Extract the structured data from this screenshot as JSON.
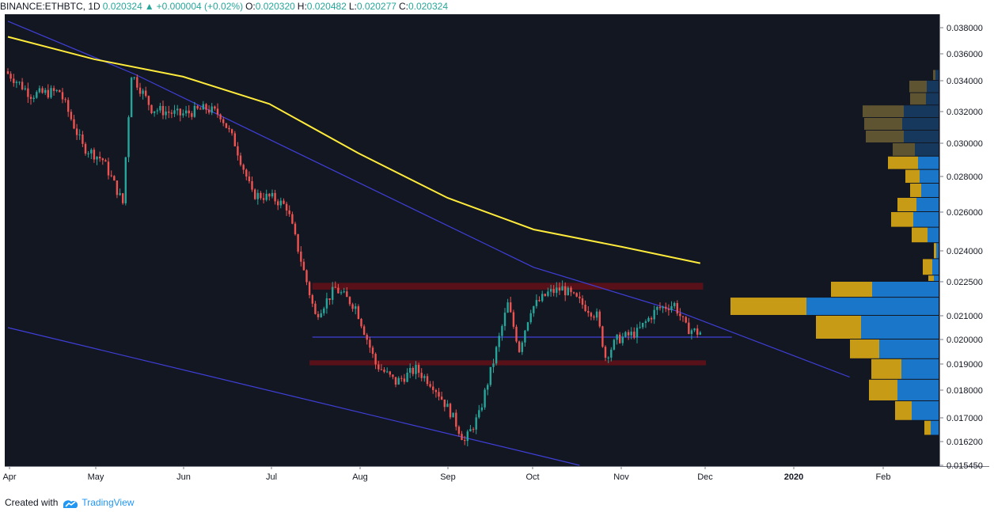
{
  "header": {
    "symbol": "BINANCE:ETHBTC, 1D",
    "last": "0.020324",
    "change": "+0.000004 (+0.02%)",
    "o_label": "O:",
    "o": "0.020320",
    "h_label": "H:",
    "h": "0.020482",
    "l_label": "L:",
    "l": "0.020277",
    "c_label": "C:",
    "c": "0.020324"
  },
  "footer": {
    "created_with": "Created with",
    "brand": "TradingView"
  },
  "colors": {
    "background": "#131722",
    "up": "#26a69a",
    "down": "#ef5350",
    "ma": "#ffeb3b",
    "trendline": "#3f3fd9",
    "resistance_zone": "#5c1119",
    "vp_buy_upper": "#5f5432",
    "vp_sell_upper": "#16385c",
    "vp_buy_lower": "#c89b16",
    "vp_sell_lower": "#1976c9"
  },
  "chart_data": {
    "type": "candlestick",
    "title": "BINANCE:ETHBTC, 1D",
    "y_axis_ticks": [
      "0.038000",
      "0.036000",
      "0.034000",
      "0.032000",
      "0.030000",
      "0.028000",
      "0.026000",
      "0.024000",
      "0.022500",
      "0.021000",
      "0.020000",
      "0.019000",
      "0.018000",
      "0.017000",
      "0.016200",
      "0.015450"
    ],
    "x_axis_ticks": [
      "Apr",
      "May",
      "Jun",
      "Jul",
      "Aug",
      "Sep",
      "Oct",
      "Nov",
      "Dec",
      "2020",
      "Feb"
    ],
    "date_range": [
      "2019-04-01",
      "2019-11-28"
    ],
    "price_anchors": [
      [
        "2019-04-01",
        0.0347
      ],
      [
        "2019-04-10",
        0.0331
      ],
      [
        "2019-04-20",
        0.0333
      ],
      [
        "2019-04-28",
        0.0298
      ],
      [
        "2019-05-05",
        0.029
      ],
      [
        "2019-05-12",
        0.0265
      ],
      [
        "2019-05-15",
        0.0345
      ],
      [
        "2019-05-22",
        0.0322
      ],
      [
        "2019-06-01",
        0.0318
      ],
      [
        "2019-06-10",
        0.0322
      ],
      [
        "2019-06-15",
        0.0318
      ],
      [
        "2019-06-20",
        0.03
      ],
      [
        "2019-06-26",
        0.027
      ],
      [
        "2019-07-03",
        0.0268
      ],
      [
        "2019-07-08",
        0.0263
      ],
      [
        "2019-07-14",
        0.023
      ],
      [
        "2019-07-18",
        0.021
      ],
      [
        "2019-07-25",
        0.0222
      ],
      [
        "2019-08-01",
        0.0214
      ],
      [
        "2019-08-08",
        0.019
      ],
      [
        "2019-08-15",
        0.0183
      ],
      [
        "2019-08-22",
        0.0188
      ],
      [
        "2019-08-28",
        0.0182
      ],
      [
        "2019-09-03",
        0.0172
      ],
      [
        "2019-09-08",
        0.0162
      ],
      [
        "2019-09-13",
        0.0171
      ],
      [
        "2019-09-18",
        0.0191
      ],
      [
        "2019-09-23",
        0.0215
      ],
      [
        "2019-09-27",
        0.0196
      ],
      [
        "2019-10-01",
        0.0213
      ],
      [
        "2019-10-07",
        0.022
      ],
      [
        "2019-10-12",
        0.0222
      ],
      [
        "2019-10-18",
        0.0216
      ],
      [
        "2019-10-24",
        0.021
      ],
      [
        "2019-10-27",
        0.0193
      ],
      [
        "2019-10-31",
        0.02
      ],
      [
        "2019-11-07",
        0.0203
      ],
      [
        "2019-11-14",
        0.0213
      ],
      [
        "2019-11-20",
        0.0215
      ],
      [
        "2019-11-24",
        0.0205
      ],
      [
        "2019-11-28",
        0.0203
      ]
    ],
    "moving_average": [
      [
        "2019-04-01",
        0.0373
      ],
      [
        "2019-05-01",
        0.0356
      ],
      [
        "2019-06-01",
        0.0343
      ],
      [
        "2019-07-01",
        0.0325
      ],
      [
        "2019-08-01",
        0.0294
      ],
      [
        "2019-09-01",
        0.0268
      ],
      [
        "2019-10-01",
        0.0251
      ],
      [
        "2019-11-01",
        0.0242
      ],
      [
        "2019-11-28",
        0.0234
      ]
    ],
    "trendlines": [
      {
        "name": "upper-descending",
        "points": [
          [
            "2019-04-01",
            0.0385
          ],
          [
            "2019-05-15",
            0.0345
          ],
          [
            "2019-10-01",
            0.0232
          ],
          [
            "2019-11-20",
            0.0212
          ],
          [
            "2020-01-19",
            0.0185
          ]
        ]
      },
      {
        "name": "lower-channel",
        "points": [
          [
            "2019-04-01",
            0.0205
          ],
          [
            "2019-10-17",
            0.01545
          ]
        ]
      },
      {
        "name": "support-line",
        "points": [
          [
            "2019-07-16",
            0.0201
          ],
          [
            "2019-12-09",
            0.0201
          ]
        ]
      }
    ],
    "zones": [
      {
        "name": "resistance-zone",
        "from": "2019-07-16",
        "to": "2019-11-29",
        "low": 0.02215,
        "high": 0.02245
      },
      {
        "name": "support-zone",
        "from": "2019-07-15",
        "to": "2019-11-30",
        "low": 0.01895,
        "high": 0.01915
      }
    ],
    "volume_profile": [
      {
        "price_low": 0.034,
        "price_high": 0.0348,
        "buy": 3,
        "sell": 4
      },
      {
        "price_low": 0.0332,
        "price_high": 0.034,
        "buy": 22,
        "sell": 15
      },
      {
        "price_low": 0.0324,
        "price_high": 0.0332,
        "buy": 20,
        "sell": 16
      },
      {
        "price_low": 0.0316,
        "price_high": 0.0324,
        "buy": 52,
        "sell": 44
      },
      {
        "price_low": 0.0308,
        "price_high": 0.0316,
        "buy": 48,
        "sell": 46
      },
      {
        "price_low": 0.03,
        "price_high": 0.0308,
        "buy": 48,
        "sell": 44
      },
      {
        "price_low": 0.0292,
        "price_high": 0.03,
        "buy": 28,
        "sell": 30
      },
      {
        "price_low": 0.0284,
        "price_high": 0.0292,
        "buy": 38,
        "sell": 26
      },
      {
        "price_low": 0.0276,
        "price_high": 0.0284,
        "buy": 18,
        "sell": 24
      },
      {
        "price_low": 0.0268,
        "price_high": 0.0276,
        "buy": 14,
        "sell": 22
      },
      {
        "price_low": 0.026,
        "price_high": 0.0268,
        "buy": 24,
        "sell": 28
      },
      {
        "price_low": 0.0252,
        "price_high": 0.026,
        "buy": 28,
        "sell": 32
      },
      {
        "price_low": 0.0244,
        "price_high": 0.0252,
        "buy": 20,
        "sell": 14
      },
      {
        "price_low": 0.0236,
        "price_high": 0.0244,
        "buy": 3,
        "sell": 3
      },
      {
        "price_low": 0.0228,
        "price_high": 0.0236,
        "buy": 12,
        "sell": 8
      },
      {
        "price_low": 0.0225,
        "price_high": 0.0228,
        "buy": 7,
        "sell": 6
      },
      {
        "price_low": 0.0218,
        "price_high": 0.0225,
        "buy": 52,
        "sell": 84
      },
      {
        "price_low": 0.021,
        "price_high": 0.0218,
        "buy": 96,
        "sell": 167
      },
      {
        "price_low": 0.02,
        "price_high": 0.021,
        "buy": 57,
        "sell": 98
      },
      {
        "price_low": 0.0192,
        "price_high": 0.02,
        "buy": 37,
        "sell": 75
      },
      {
        "price_low": 0.0184,
        "price_high": 0.0192,
        "buy": 38,
        "sell": 47
      },
      {
        "price_low": 0.0176,
        "price_high": 0.0184,
        "buy": 36,
        "sell": 52
      },
      {
        "price_low": 0.0169,
        "price_high": 0.0176,
        "buy": 21,
        "sell": 34
      },
      {
        "price_low": 0.0164,
        "price_high": 0.0169,
        "buy": 8,
        "sell": 10
      }
    ]
  }
}
